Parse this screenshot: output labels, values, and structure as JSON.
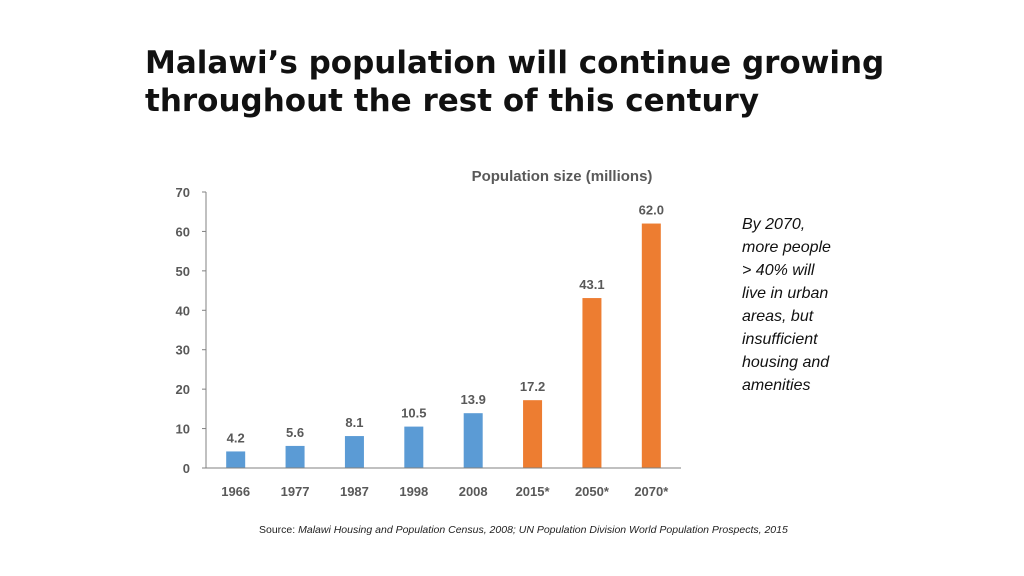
{
  "slide": {
    "title_lines": [
      "Malawi’s population will continue growing",
      "throughout the rest of this century"
    ],
    "callout_lines": [
      "By 2070,",
      "more people",
      "> 40%  will",
      "live in urban",
      "areas, but",
      "insufficient",
      "housing and",
      "amenities"
    ],
    "source_prefix": "Source: ",
    "source_text": "Malawi Housing and Population Census, 2008; UN Population Division World Population Prospects, 2015"
  },
  "colors": {
    "census": "#5b9bd5",
    "projection": "#ed7d31",
    "axis": "#808080",
    "text": "#595959"
  },
  "chart_data": {
    "type": "bar",
    "title": "Population size (millions)",
    "categories": [
      "1966",
      "1977",
      "1987",
      "1998",
      "2008",
      "2015*",
      "2050*",
      "2070*"
    ],
    "values": [
      4.2,
      5.6,
      8.1,
      10.5,
      13.9,
      17.2,
      43.1,
      62.0
    ],
    "data_labels": [
      "4.2",
      "5.6",
      "8.1",
      "10.5",
      "13.9",
      "17.2",
      "43.1",
      "62.0"
    ],
    "bar_colors": [
      "census",
      "census",
      "census",
      "census",
      "census",
      "projection",
      "projection",
      "projection"
    ],
    "y_ticks": [
      0,
      10,
      20,
      30,
      40,
      50,
      60,
      70
    ],
    "ylim": [
      0,
      70
    ],
    "xlabel": "",
    "ylabel": "",
    "grid": false,
    "legend": "none"
  }
}
